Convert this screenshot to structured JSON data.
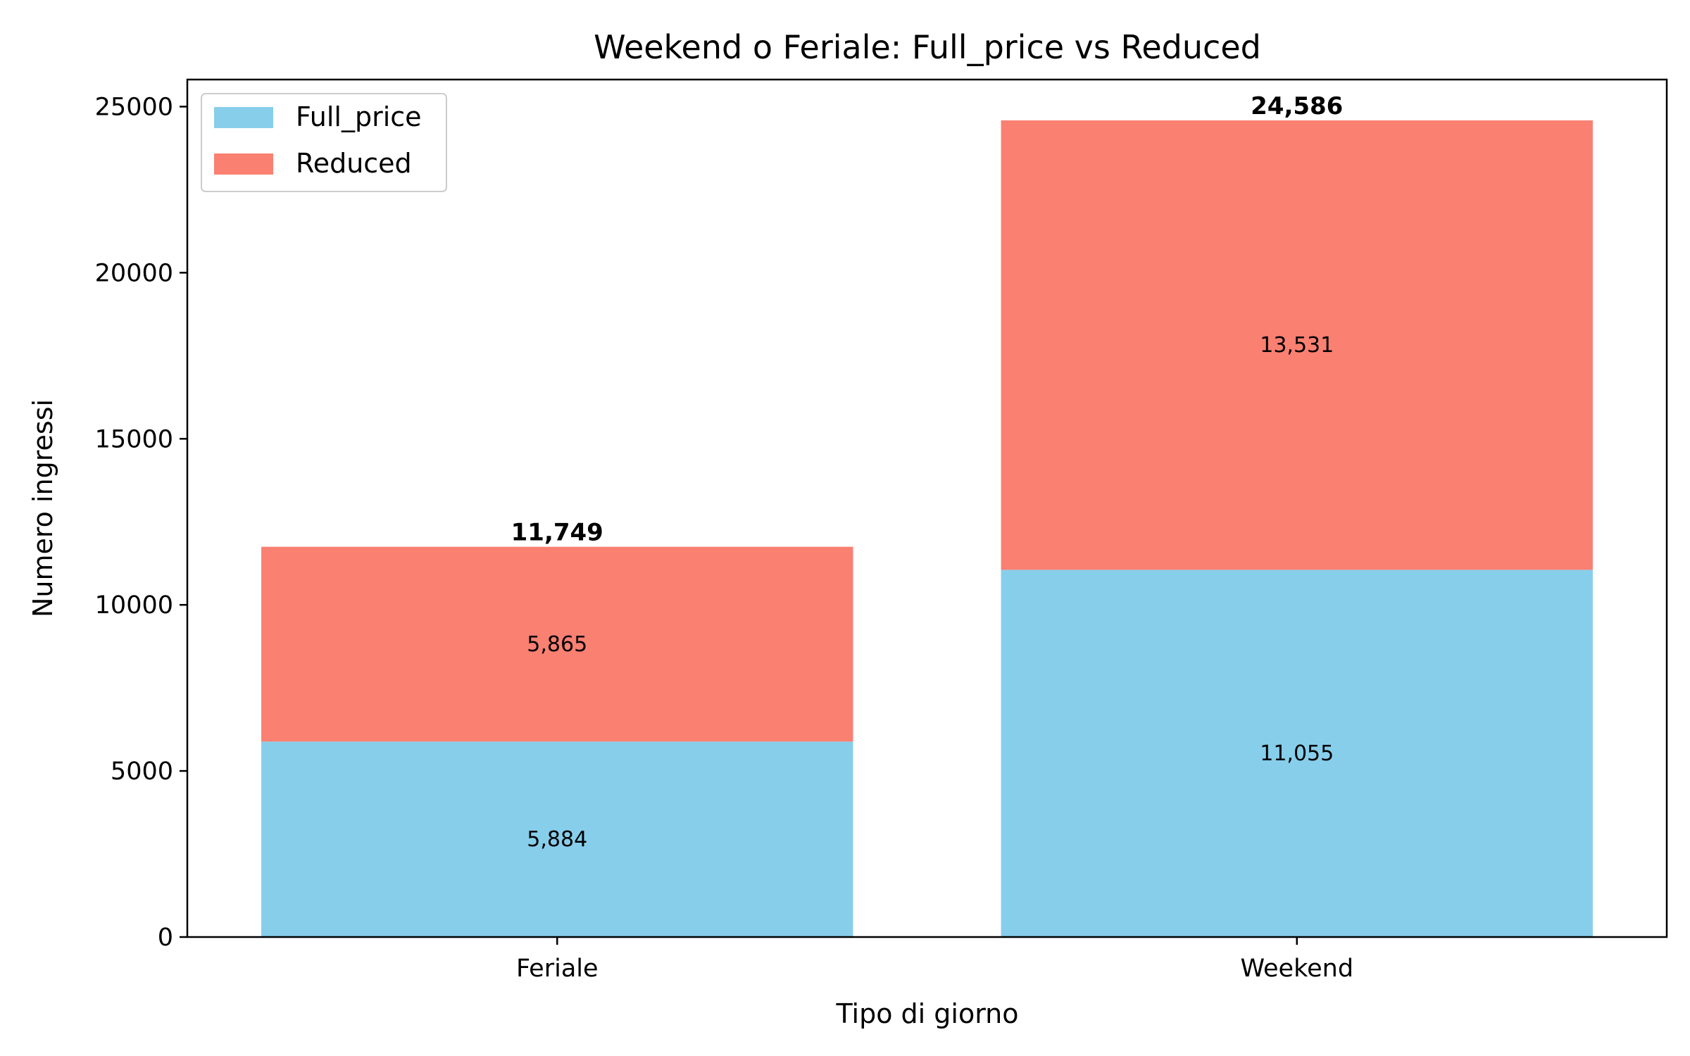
{
  "chart_data": {
    "type": "bar",
    "stacked": true,
    "title": "Weekend o Feriale: Full_price vs Reduced",
    "xlabel": "Tipo di giorno",
    "ylabel": "Numero ingressi",
    "categories": [
      "Feriale",
      "Weekend"
    ],
    "series": [
      {
        "name": "Full_price",
        "values": [
          5884,
          11055
        ],
        "labels": [
          "5,884",
          "11,055"
        ],
        "color": "#87CEEB"
      },
      {
        "name": "Reduced",
        "values": [
          5865,
          13531
        ],
        "labels": [
          "5,865",
          "13,531"
        ],
        "color": "#FA8072"
      }
    ],
    "totals": [
      11749,
      24586
    ],
    "total_labels": [
      "11,749",
      "24,586"
    ],
    "ylim": [
      0,
      25815
    ],
    "yticks": [
      0,
      5000,
      10000,
      15000,
      20000,
      25000
    ],
    "ytick_labels": [
      "0",
      "5000",
      "10000",
      "15000",
      "20000",
      "25000"
    ],
    "legend_position": "upper-left",
    "grid": false
  }
}
